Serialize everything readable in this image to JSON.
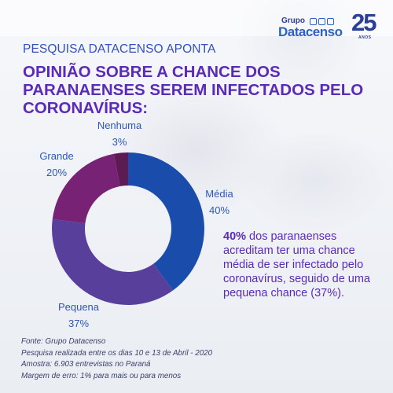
{
  "header": {
    "logo_line1": "Grupo",
    "logo_line2": "Datacenso",
    "logo_years": "25",
    "logo_years_sub": "ANOS",
    "kicker": "PESQUISA DATACENSO APONTA",
    "title": "OPINIÃO SOBRE A CHANCE DOS PARANAENSES SEREM INFECTADOS PELO CORONAVÍRUS:"
  },
  "chart_data": {
    "type": "pie",
    "variant": "donut",
    "categories": [
      "Média",
      "Pequena",
      "Grande",
      "Nenhuma"
    ],
    "values": [
      40,
      37,
      20,
      3
    ],
    "value_labels": [
      "40%",
      "37%",
      "20%",
      "3%"
    ],
    "colors": [
      "#1a4cab",
      "#593f9c",
      "#772275",
      "#5c1c53"
    ]
  },
  "highlight": {
    "value": "40%",
    "text": " dos paranaenses acreditam ter uma chance média de ser infectado pelo coronavírus, seguido de uma pequena chance (37%)."
  },
  "footer": {
    "lines": [
      "Fonte: Grupo Datacenso",
      "Pesquisa realizada entre os dias 10 e 13 de Abril - 2020",
      "Amostra: 6.903 entrevistas no Paraná",
      "Margem de erro: 1% para mais ou para menos"
    ]
  }
}
